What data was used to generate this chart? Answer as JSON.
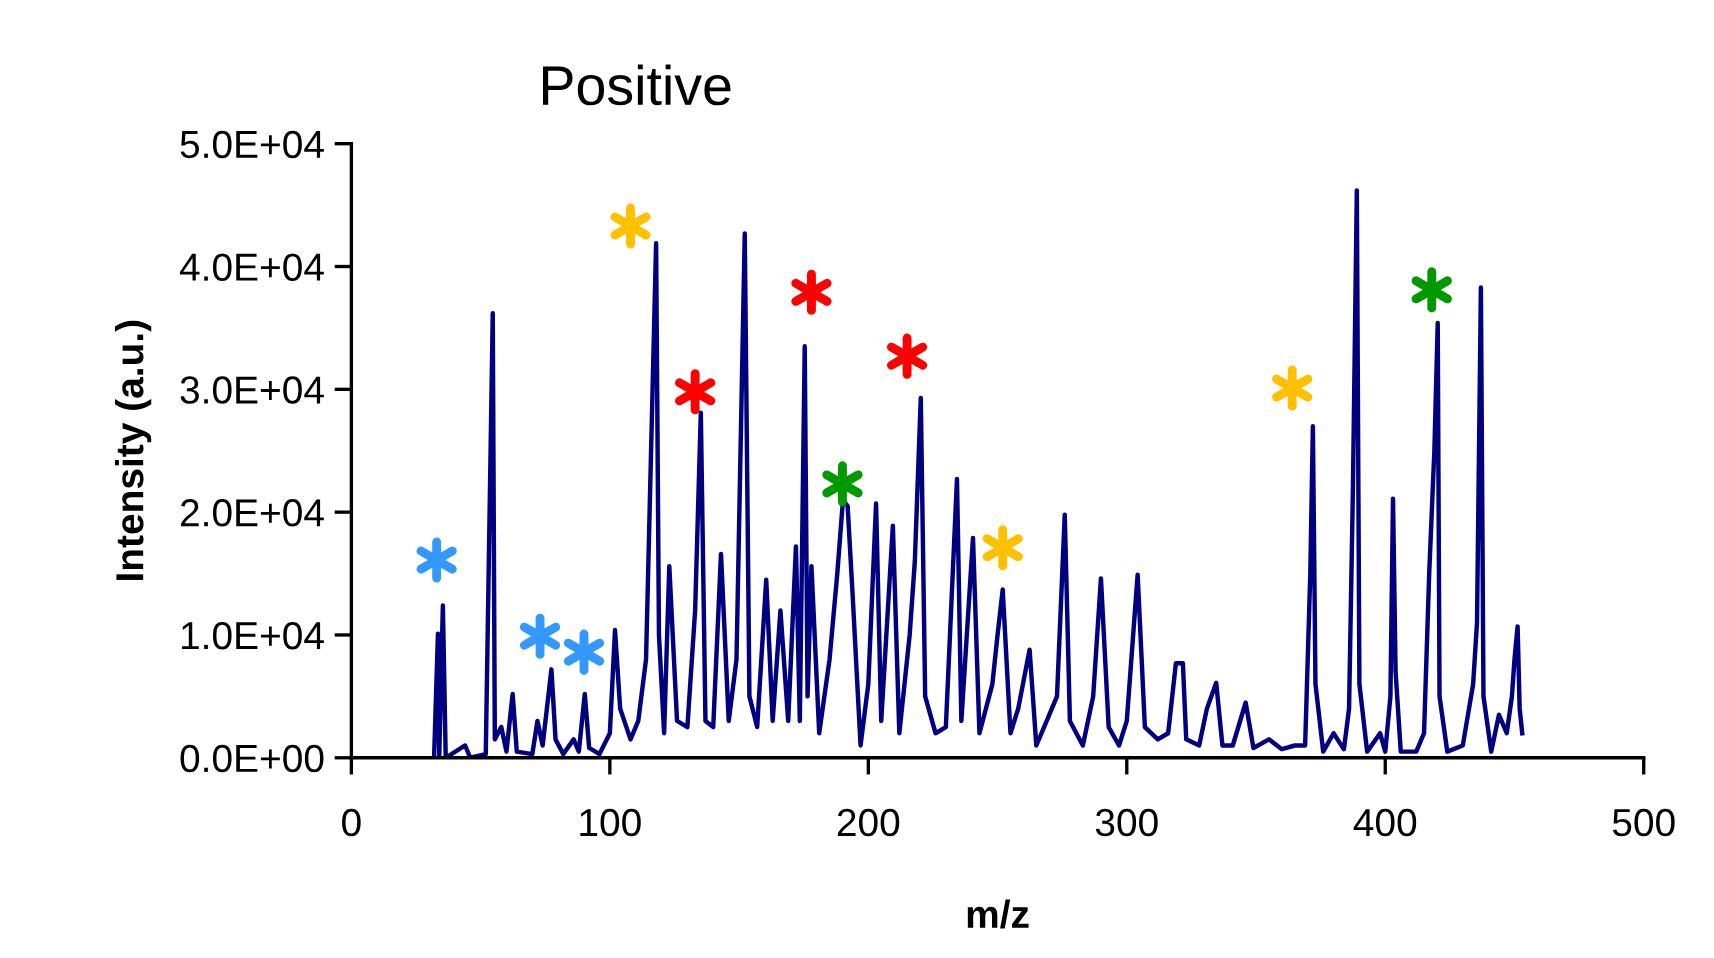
{
  "chart_data": {
    "type": "line",
    "title": "Positive",
    "xlabel": "m/z",
    "ylabel": "Intensity (a.u.)",
    "xlim": [
      0,
      500
    ],
    "xticks": [
      0,
      100,
      200,
      300,
      400,
      500
    ],
    "ylim": [
      0,
      50000
    ],
    "yticks": [
      {
        "value": 0,
        "label": "0.0E+00"
      },
      {
        "value": 10000,
        "label": "1.0E+04"
      },
      {
        "value": 20000,
        "label": "2.0E+04"
      },
      {
        "value": 30000,
        "label": "3.0E+04"
      },
      {
        "value": 40000,
        "label": "4.0E+04"
      },
      {
        "value": 50000,
        "label": "5.0E+04"
      }
    ],
    "grid": false,
    "legend": false,
    "marker": "none",
    "line_style": "solid",
    "series": [
      {
        "color": "#000080",
        "x": [
          32,
          33.5,
          34,
          35.4,
          36.5,
          44,
          46,
          52,
          54.7,
          55.5,
          58,
          60,
          62.4,
          64,
          70,
          72,
          74,
          77.4,
          79,
          82,
          86,
          88,
          90.3,
          92,
          96,
          100,
          102,
          104,
          108,
          111,
          114,
          117.9,
          119,
          121,
          123,
          126,
          130,
          133,
          135.2,
          137,
          140,
          143,
          146,
          149,
          152.2,
          154,
          157,
          160.5,
          163,
          166,
          169,
          172,
          173.5,
          175.4,
          176.5,
          178,
          181,
          185,
          188,
          190.2,
          192,
          194,
          197,
          200,
          203,
          205,
          209.5,
          212,
          216,
          218,
          220.3,
          222,
          226,
          230,
          234.3,
          236,
          240.5,
          243,
          248,
          250,
          252,
          255,
          258,
          262.4,
          265,
          270,
          273,
          276,
          278,
          283,
          287,
          290,
          293,
          297,
          300,
          304.2,
          307,
          312,
          316,
          319,
          321.7,
          323,
          328,
          331,
          334.6,
          337,
          341,
          346,
          349,
          355,
          360,
          365,
          369,
          371,
          372,
          373,
          376,
          380,
          384,
          386,
          387.5,
          389,
          390,
          393,
          398,
          400,
          402,
          403,
          404,
          406,
          412,
          415,
          417,
          419,
          420.3,
          421,
          424,
          430,
          434,
          435.5,
          437,
          438,
          441,
          444,
          447,
          449,
          450,
          451.2,
          452,
          453
        ],
        "values": [
          0,
          10100,
          200,
          12400,
          0,
          1000,
          0,
          300,
          36200,
          1500,
          2500,
          500,
          5200,
          500,
          300,
          3000,
          1000,
          7200,
          1500,
          300,
          1500,
          500,
          5200,
          800,
          300,
          2000,
          10400,
          4000,
          1500,
          3000,
          8000,
          41900,
          10000,
          2000,
          15600,
          3000,
          2500,
          12000,
          28100,
          3000,
          2500,
          16600,
          3000,
          8000,
          42700,
          5000,
          2500,
          14500,
          3000,
          12000,
          3000,
          17200,
          3000,
          33500,
          5000,
          15600,
          2000,
          8000,
          15000,
          21000,
          20500,
          13000,
          1000,
          6000,
          20700,
          3000,
          18900,
          2000,
          10000,
          16000,
          29300,
          5000,
          2000,
          2500,
          22700,
          3000,
          17900,
          2000,
          6000,
          10000,
          13700,
          2000,
          4000,
          8800,
          1000,
          3500,
          5000,
          19800,
          3000,
          1000,
          5000,
          14600,
          2500,
          1000,
          3000,
          14900,
          2500,
          1500,
          2000,
          7700,
          7700,
          1500,
          1000,
          4000,
          6100,
          1000,
          1000,
          4500,
          800,
          1500,
          700,
          1000,
          1000,
          15000,
          27000,
          6000,
          500,
          2000,
          700,
          4000,
          22000,
          46200,
          6000,
          500,
          2000,
          500,
          5000,
          21100,
          7000,
          500,
          500,
          2000,
          15000,
          25000,
          35400,
          5000,
          500,
          1000,
          6000,
          11000,
          38300,
          5000,
          500,
          3500,
          2000,
          5000,
          8000,
          10700,
          4000,
          2000
        ]
      },
      {
        "type": "scatter",
        "marker": "cross",
        "color": "#3399ff",
        "x": [
          33,
          73,
          90
        ],
        "values": [
          16100,
          9900,
          8600
        ]
      },
      {
        "type": "scatter",
        "marker": "cross",
        "color": "#ffc000",
        "x": [
          108,
          252,
          364
        ],
        "values": [
          43300,
          17100,
          30100
        ]
      },
      {
        "type": "scatter",
        "marker": "cross",
        "color": "#ff0000",
        "x": [
          133,
          178,
          215
        ],
        "values": [
          29800,
          37900,
          32700
        ]
      },
      {
        "type": "scatter",
        "marker": "cross",
        "color": "#009900",
        "x": [
          190,
          418
        ],
        "values": [
          22300,
          38100
        ]
      }
    ]
  }
}
